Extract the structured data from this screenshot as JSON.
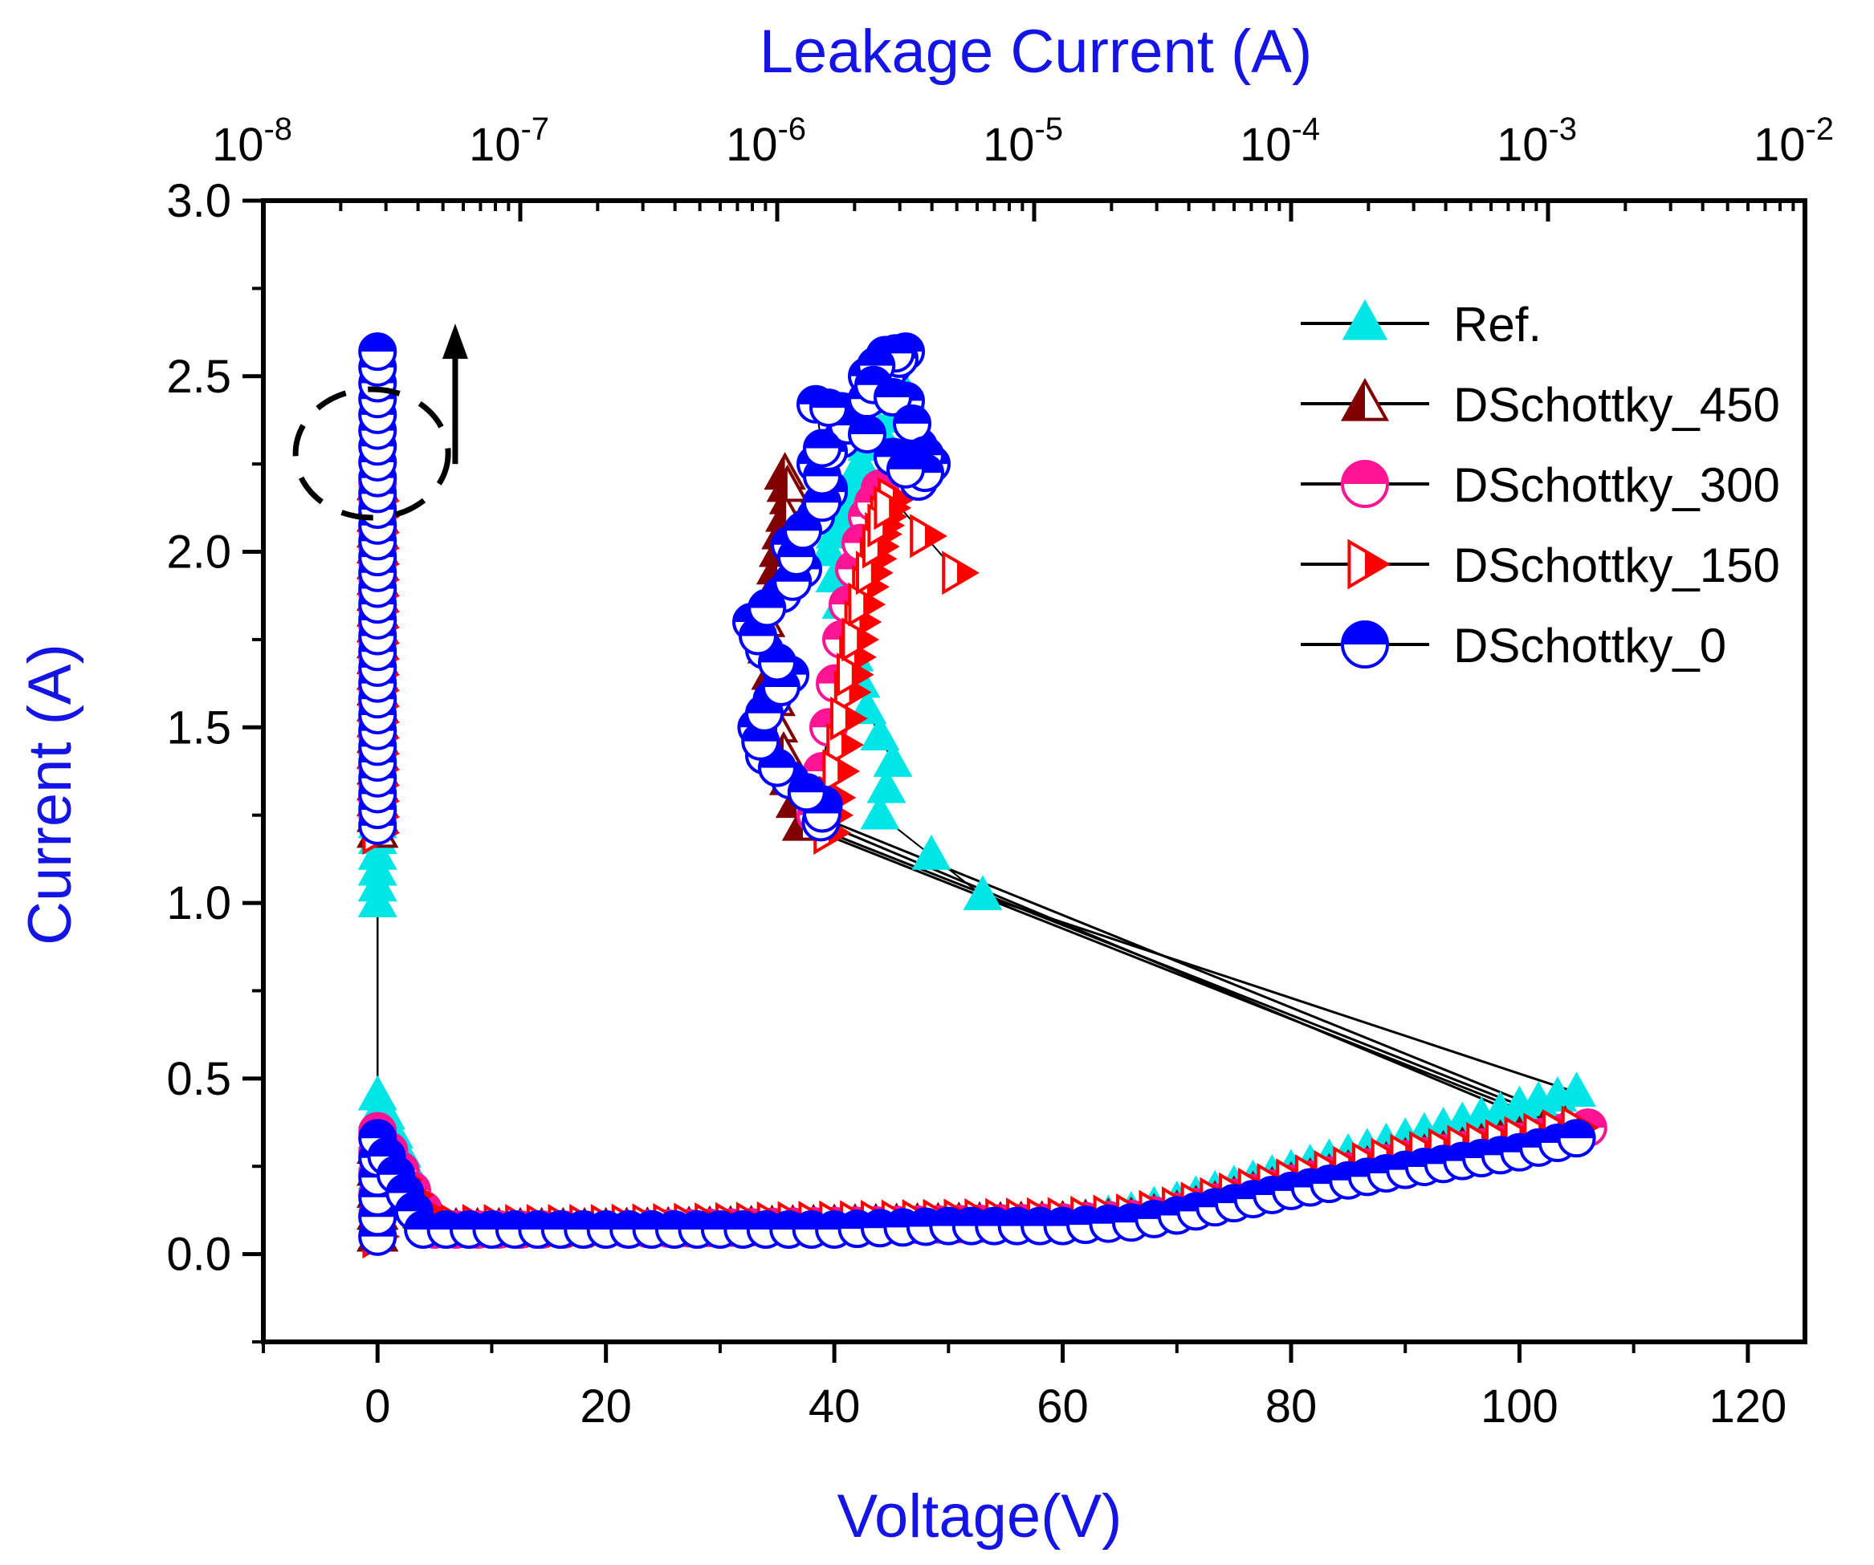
{
  "chart_data": {
    "type": "scatter",
    "title": "",
    "xlabel": "Voltage(V)",
    "ylabel": "Current (A)",
    "top_xlabel": "Leakage Current (A)",
    "xlim": [
      -10,
      125
    ],
    "ylim": [
      -0.25,
      3.0
    ],
    "top_xlim_log10": [
      -8,
      -2
    ],
    "x_ticks": [
      0,
      20,
      40,
      60,
      80,
      100,
      120
    ],
    "x_tick_labels": [
      "0",
      "20",
      "40",
      "60",
      "80",
      "100",
      "120"
    ],
    "y_ticks": [
      0.0,
      0.5,
      1.0,
      1.5,
      2.0,
      2.5,
      3.0
    ],
    "y_tick_labels": [
      "0.0",
      "0.5",
      "1.0",
      "1.5",
      "2.0",
      "2.5",
      "3.0"
    ],
    "top_ticks_log10": [
      -8,
      -7,
      -6,
      -5,
      -4,
      -3,
      -2
    ],
    "top_tick_labels": [
      {
        "base": "10",
        "exp": "-8"
      },
      {
        "base": "10",
        "exp": "-7"
      },
      {
        "base": "10",
        "exp": "-6"
      },
      {
        "base": "10",
        "exp": "-5"
      },
      {
        "base": "10",
        "exp": "-4"
      },
      {
        "base": "10",
        "exp": "-3"
      },
      {
        "base": "10",
        "exp": "-2"
      }
    ],
    "grid": false,
    "legend_position": "top-right",
    "series": [
      {
        "name": "Ref.",
        "marker": "triangle-up",
        "fill": "#00e5e5",
        "stroke": "#00e5e5",
        "iv_curve": {
          "v": [
            0,
            0,
            0,
            5,
            20,
            40,
            60,
            66,
            70,
            80,
            90,
            100,
            105
          ],
          "i": [
            0.05,
            0.4,
            0.45,
            0.07,
            0.07,
            0.08,
            0.09,
            0.12,
            0.15,
            0.24,
            0.33,
            0.42,
            0.46
          ]
        },
        "vertical_band": {
          "v": 0,
          "i_min": 1.0,
          "i_max": 2.3
        },
        "leakage": {
          "log10_i": [
            -5.2,
            -5.6,
            -5.55,
            -5.65,
            -5.7,
            -5.75,
            -5.8,
            -5.75,
            -5.7,
            -5.65,
            -5.55,
            -5.5
          ],
          "i": [
            1.02,
            1.25,
            1.4,
            1.55,
            1.7,
            1.85,
            2.0,
            2.1,
            2.2,
            2.3,
            2.38,
            2.45
          ]
        }
      },
      {
        "name": "DSchottky_450",
        "marker": "triangle-half",
        "fill": "#800000",
        "stroke": "#800000",
        "iv_curve": {
          "v": [
            0,
            0,
            5,
            20,
            40,
            60,
            66,
            70,
            80,
            90,
            100,
            104
          ],
          "i": [
            0.05,
            0.3,
            0.07,
            0.07,
            0.08,
            0.09,
            0.1,
            0.12,
            0.2,
            0.27,
            0.33,
            0.36
          ]
        },
        "vertical_band": {
          "v": 0,
          "i_min": 1.2,
          "i_max": 2.2
        },
        "leakage": {
          "log10_i": [
            -5.9,
            -5.95,
            -6.0,
            -6.02,
            -6.05,
            -6.0,
            -5.98,
            -5.95,
            -5.97
          ],
          "i": [
            1.22,
            1.35,
            1.5,
            1.65,
            1.8,
            1.95,
            2.05,
            2.15,
            2.22
          ]
        }
      },
      {
        "name": "DSchottky_300",
        "marker": "circle-half",
        "fill": "#ff1493",
        "stroke": "#ff1493",
        "iv_curve": {
          "v": [
            0,
            0,
            5,
            20,
            40,
            60,
            66,
            70,
            80,
            90,
            100,
            106
          ],
          "i": [
            0.05,
            0.35,
            0.07,
            0.07,
            0.08,
            0.09,
            0.1,
            0.12,
            0.2,
            0.27,
            0.32,
            0.36
          ]
        },
        "vertical_band": {
          "v": 0,
          "i_min": 1.25,
          "i_max": 2.2
        },
        "leakage": {
          "log10_i": [
            -5.85,
            -5.8,
            -5.75,
            -5.7,
            -5.65,
            -5.6
          ],
          "i": [
            1.25,
            1.5,
            1.75,
            1.95,
            2.1,
            2.18
          ]
        }
      },
      {
        "name": "DSchottky_150",
        "marker": "triangle-right-half",
        "fill": "#ff0000",
        "stroke": "#ff0000",
        "iv_curve": {
          "v": [
            0,
            0,
            5,
            20,
            40,
            60,
            66,
            70,
            80,
            90,
            100,
            105
          ],
          "i": [
            0.05,
            0.3,
            0.08,
            0.08,
            0.09,
            0.1,
            0.11,
            0.13,
            0.21,
            0.28,
            0.33,
            0.36
          ]
        },
        "vertical_band": {
          "v": 0,
          "i_min": 1.2,
          "i_max": 2.15
        },
        "leakage": {
          "log10_i": [
            -5.8,
            -5.78,
            -5.75,
            -5.72,
            -5.7,
            -5.68,
            -5.65,
            -5.62,
            -5.6,
            -5.58,
            -5.55,
            -5.3
          ],
          "i": [
            1.2,
            1.3,
            1.45,
            1.6,
            1.7,
            1.8,
            1.9,
            1.98,
            2.05,
            2.1,
            2.15,
            1.94
          ]
        }
      },
      {
        "name": "DSchottky_0",
        "marker": "circle-half",
        "fill": "#0000ff",
        "stroke": "#0000ff",
        "iv_curve": {
          "v": [
            0,
            0,
            4,
            10,
            20,
            30,
            40,
            50,
            60,
            66,
            70,
            80,
            90,
            100,
            105
          ],
          "i": [
            0.05,
            0.33,
            0.07,
            0.07,
            0.07,
            0.07,
            0.07,
            0.08,
            0.08,
            0.09,
            0.11,
            0.18,
            0.24,
            0.29,
            0.33
          ]
        },
        "vertical_band": {
          "v": 0,
          "i_min": 1.22,
          "i_max": 2.58
        },
        "leakage": {
          "log10_i": [
            -5.83,
            -5.82,
            -5.95,
            -6.05,
            -6.08,
            -6.02,
            -5.95,
            -6.05,
            -6.1,
            -5.98,
            -5.9,
            -5.95,
            -5.85,
            -5.8,
            -5.85,
            -5.75,
            -5.7,
            -5.6,
            -5.55,
            -5.5,
            -5.58,
            -5.65,
            -5.6,
            -5.5,
            -5.45,
            -5.4,
            -5.45,
            -5.55,
            -5.75,
            -5.85,
            -5.8
          ],
          "i": [
            1.23,
            1.28,
            1.35,
            1.42,
            1.5,
            1.58,
            1.65,
            1.72,
            1.8,
            1.88,
            1.95,
            2.02,
            2.1,
            2.18,
            2.25,
            2.32,
            2.4,
            2.47,
            2.53,
            2.57,
            2.56,
            2.5,
            2.45,
            2.43,
            2.3,
            2.25,
            2.2,
            2.27,
            2.4,
            2.42,
            2.17
          ]
        }
      }
    ],
    "annotations": [
      {
        "type": "dashed-ellipse",
        "around": "vertical current band at V = 0, I ≈ 2.1–2.4 A"
      },
      {
        "type": "double-arrow",
        "direction": "vertical",
        "near": "V ≈ 7 V, I ≈ 2.25–2.65 A"
      }
    ]
  }
}
